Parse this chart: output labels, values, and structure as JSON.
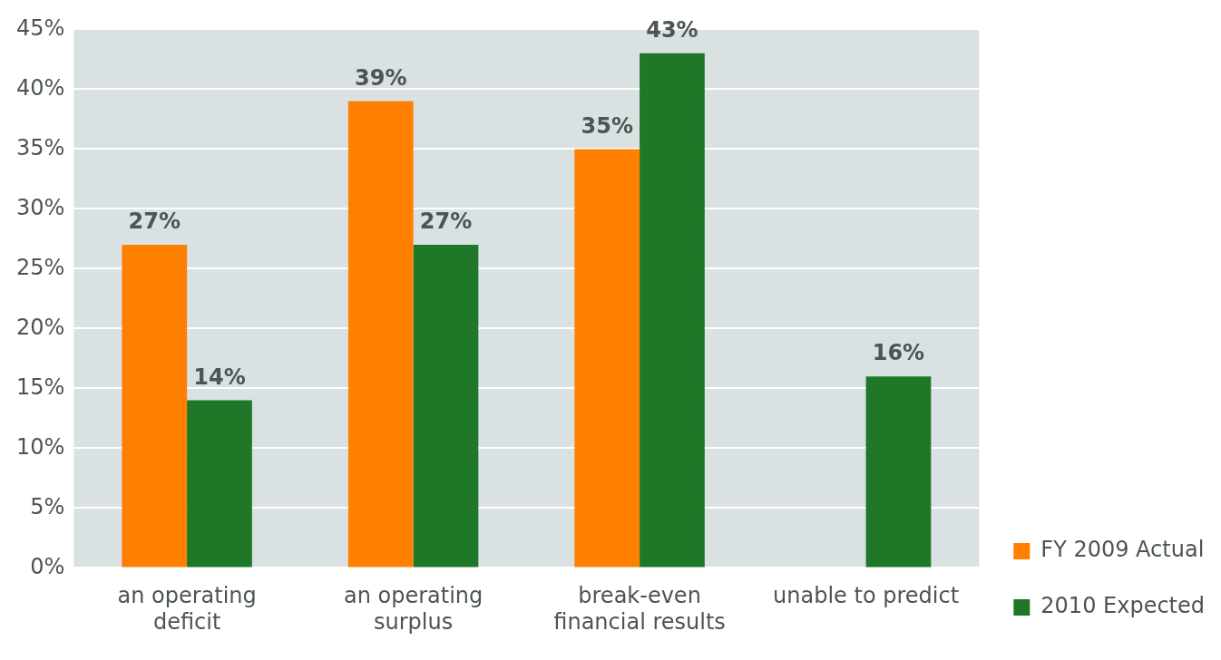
{
  "chart_data": {
    "type": "bar",
    "categories": [
      "an operating deficit",
      "an operating surplus",
      "break-even financial results",
      "unable to predict"
    ],
    "series": [
      {
        "name": "FY 2009 Actual",
        "color": "#ff8000",
        "values": [
          27,
          39,
          35,
          null
        ],
        "value_labels": [
          "27%",
          "39%",
          "35%",
          null
        ]
      },
      {
        "name": "2010 Expected",
        "color": "#1e7828",
        "values": [
          14,
          27,
          43,
          16
        ],
        "value_labels": [
          "14%",
          "27%",
          "43%",
          "16%"
        ]
      }
    ],
    "ylim": [
      0,
      45
    ],
    "yticks": [
      {
        "value": 0,
        "label": "0%"
      },
      {
        "value": 5,
        "label": "5%"
      },
      {
        "value": 10,
        "label": "10%"
      },
      {
        "value": 15,
        "label": "15%"
      },
      {
        "value": 20,
        "label": "20%"
      },
      {
        "value": 25,
        "label": "25%"
      },
      {
        "value": 30,
        "label": "30%"
      },
      {
        "value": 35,
        "label": "35%"
      },
      {
        "value": 40,
        "label": "40%"
      },
      {
        "value": 45,
        "label": "45%"
      }
    ],
    "grid": "y",
    "legend": "bottom right"
  }
}
